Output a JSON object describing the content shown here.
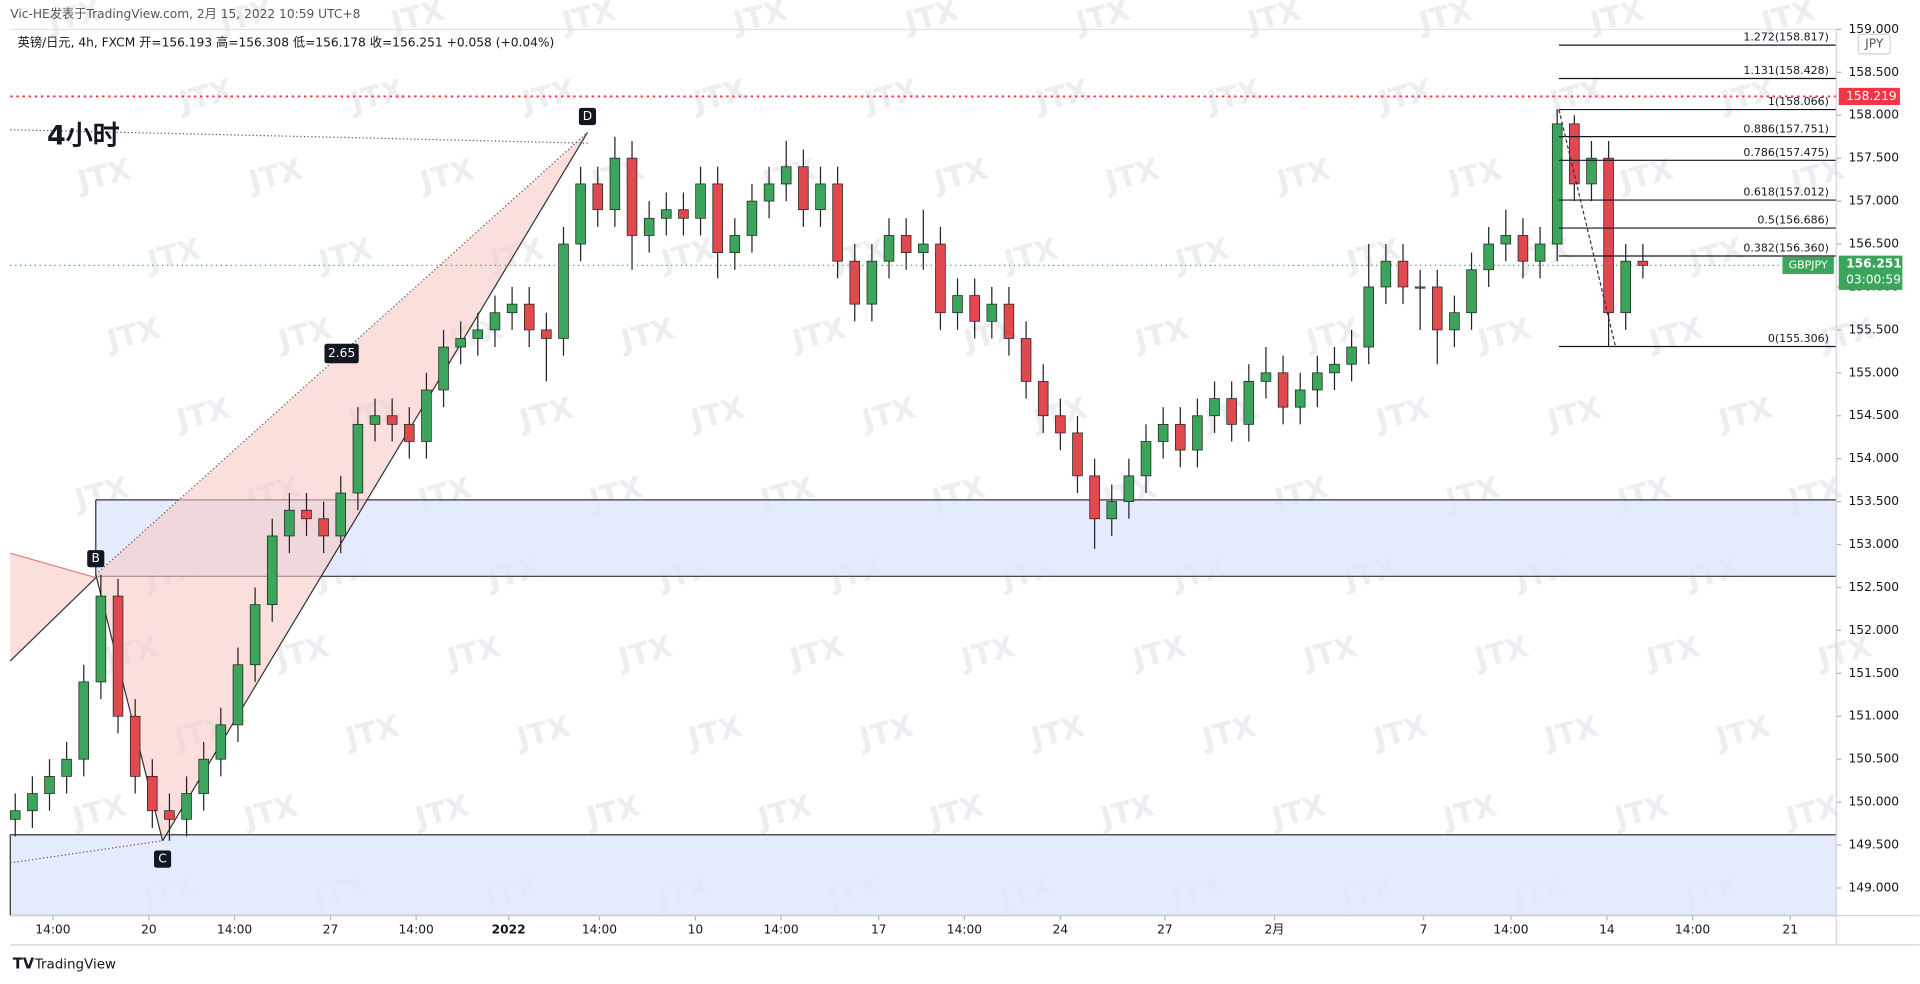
{
  "chart_data": {
    "type": "candlestick",
    "header": "Vic-HE发表于TradingView.com, 2月 15, 2022 10:59 UTC+8",
    "legend_line": "英镑/日元, 4h, FXCM  开=156.193  高=156.308  低=156.178  收=156.251  +0.058 (+0.04%)",
    "title": "4小时",
    "currency": "JPY",
    "brand": "TradingView",
    "watermark": "JTX",
    "symbol": "GBPJPY",
    "last_price": {
      "value": 156.251,
      "label": "156.251"
    },
    "countdown": "03:00:59",
    "alert_line": {
      "value": 158.219,
      "label": "158.219",
      "color": "#f23645"
    },
    "up_color": "#3ba55c",
    "down_color": "#e0494d",
    "xlim": [
      -0.29,
      106.29
    ],
    "ylim": [
      148.68,
      159.0
    ],
    "xticks": [
      {
        "value": 2.2,
        "label": "14:00"
      },
      {
        "value": 7.8,
        "label": "20"
      },
      {
        "value": 12.8,
        "label": "14:00"
      },
      {
        "value": 18.4,
        "label": "27"
      },
      {
        "value": 23.4,
        "label": "14:00"
      },
      {
        "value": 28.8,
        "label": "2022"
      },
      {
        "value": 34.1,
        "label": "14:00"
      },
      {
        "value": 39.7,
        "label": "10"
      },
      {
        "value": 44.7,
        "label": "14:00"
      },
      {
        "value": 50.4,
        "label": "17"
      },
      {
        "value": 55.4,
        "label": "14:00"
      },
      {
        "value": 61.0,
        "label": "24"
      },
      {
        "value": 67.1,
        "label": "27"
      },
      {
        "value": 73.5,
        "label": "2月"
      },
      {
        "value": 82.2,
        "label": "7"
      },
      {
        "value": 87.3,
        "label": "14:00"
      },
      {
        "value": 92.9,
        "label": "14"
      },
      {
        "value": 97.9,
        "label": "14:00"
      },
      {
        "value": 103.6,
        "label": "21"
      }
    ],
    "yticks": [
      {
        "value": 149,
        "label": "149.000"
      },
      {
        "value": 149.5,
        "label": "149.500"
      },
      {
        "value": 150,
        "label": "150.000"
      },
      {
        "value": 150.5,
        "label": "150.500"
      },
      {
        "value": 151,
        "label": "151.000"
      },
      {
        "value": 151.5,
        "label": "151.500"
      },
      {
        "value": 152,
        "label": "152.000"
      },
      {
        "value": 152.5,
        "label": "152.500"
      },
      {
        "value": 153,
        "label": "153.000"
      },
      {
        "value": 153.5,
        "label": "153.500"
      },
      {
        "value": 154,
        "label": "154.000"
      },
      {
        "value": 154.5,
        "label": "154.500"
      },
      {
        "value": 155,
        "label": "155.000"
      },
      {
        "value": 155.5,
        "label": "155.500"
      },
      {
        "value": 156,
        "label": "156.000"
      },
      {
        "value": 156.5,
        "label": "156.500"
      },
      {
        "value": 157,
        "label": "157.000"
      },
      {
        "value": 157.5,
        "label": "157.500"
      },
      {
        "value": 158,
        "label": "158.000"
      },
      {
        "value": 158.5,
        "label": "158.500"
      },
      {
        "value": 159,
        "label": "159.000"
      }
    ],
    "zones": [
      {
        "from": 152.63,
        "to": 153.52,
        "x_start": 4.7
      },
      {
        "from": 148.68,
        "to": 149.62,
        "x_start": -0.29
      }
    ],
    "pattern": {
      "ratio": "2.65",
      "points": [
        {
          "label": "B",
          "x": 4.7,
          "price": 152.65
        },
        {
          "label": "C",
          "x": 8.6,
          "price": 149.55
        },
        {
          "label": "D",
          "x": 33.4,
          "price": 157.8
        }
      ]
    },
    "fib": {
      "start_x": 90.1,
      "end_x": 93.4,
      "levels": [
        {
          "price": 158.817,
          "label": "1.272(158.817)"
        },
        {
          "price": 158.428,
          "label": "1.131(158.428)"
        },
        {
          "price": 158.066,
          "label": "1(158.066)"
        },
        {
          "price": 157.751,
          "label": "0.886(157.751)"
        },
        {
          "price": 157.475,
          "label": "0.786(157.475)"
        },
        {
          "price": 157.012,
          "label": "0.618(157.012)"
        },
        {
          "price": 156.686,
          "label": "0.5(156.686)"
        },
        {
          "price": 156.36,
          "label": "0.382(156.360)"
        },
        {
          "price": 155.306,
          "label": "0(155.306)"
        }
      ]
    },
    "series": [
      {
        "name": "英镑/日元",
        "open": [
          149.8,
          149.9,
          150.1,
          150.3,
          150.5,
          151.4,
          152.4,
          151.0,
          150.3,
          149.9,
          149.8,
          150.1,
          150.5,
          150.9,
          151.6,
          152.3,
          153.1,
          153.4,
          153.3,
          153.1,
          153.6,
          154.4,
          154.5,
          154.4,
          154.2,
          154.8,
          155.3,
          155.4,
          155.5,
          155.7,
          155.8,
          155.5,
          155.4,
          156.5,
          157.2,
          156.9,
          157.5,
          156.6,
          156.8,
          156.9,
          156.8,
          157.2,
          156.4,
          156.6,
          157.0,
          157.2,
          157.4,
          156.9,
          157.2,
          156.3,
          155.8,
          156.3,
          156.6,
          156.4,
          156.5,
          155.7,
          155.9,
          155.6,
          155.8,
          155.4,
          154.9,
          154.5,
          154.3,
          153.8,
          153.3,
          153.5,
          153.8,
          154.2,
          154.4,
          154.1,
          154.5,
          154.7,
          154.4,
          154.9,
          155.0,
          154.6,
          154.8,
          155.0,
          155.1,
          155.3,
          156.0,
          156.3,
          156.0,
          156.0,
          155.5,
          155.7,
          156.2,
          156.5,
          156.6,
          156.3,
          156.5,
          157.9,
          157.2,
          157.5,
          155.7,
          156.3
        ],
        "high": [
          150.1,
          150.3,
          150.5,
          150.7,
          151.6,
          152.65,
          152.6,
          151.2,
          150.5,
          150.1,
          150.3,
          150.7,
          151.1,
          151.8,
          152.5,
          153.3,
          153.6,
          153.6,
          153.5,
          153.8,
          154.6,
          154.7,
          154.7,
          154.6,
          155.0,
          155.5,
          155.6,
          155.7,
          155.9,
          156.0,
          156.0,
          155.7,
          156.7,
          157.4,
          157.4,
          157.75,
          157.7,
          157.0,
          157.1,
          157.1,
          157.4,
          157.4,
          156.8,
          157.2,
          157.4,
          157.7,
          157.6,
          157.4,
          157.4,
          156.5,
          156.5,
          156.8,
          156.8,
          156.9,
          156.7,
          156.1,
          156.1,
          156.0,
          156.0,
          155.6,
          155.1,
          154.7,
          154.5,
          154.0,
          153.7,
          154.0,
          154.4,
          154.6,
          154.6,
          154.7,
          154.9,
          154.9,
          155.1,
          155.3,
          155.2,
          155.0,
          155.2,
          155.3,
          155.5,
          156.5,
          156.5,
          156.5,
          156.2,
          156.2,
          155.9,
          156.4,
          156.7,
          156.9,
          156.8,
          156.7,
          158.07,
          158.0,
          157.7,
          157.7,
          156.5,
          156.5
        ],
        "low": [
          149.6,
          149.7,
          149.9,
          150.1,
          150.3,
          151.2,
          150.8,
          150.1,
          149.7,
          149.55,
          149.6,
          149.9,
          150.3,
          150.7,
          151.4,
          152.1,
          152.9,
          153.1,
          152.9,
          152.9,
          153.4,
          154.2,
          154.2,
          154.0,
          154.0,
          154.6,
          155.1,
          155.2,
          155.3,
          155.5,
          155.3,
          154.9,
          155.2,
          156.3,
          156.7,
          156.7,
          156.2,
          156.4,
          156.6,
          156.6,
          156.6,
          156.1,
          156.2,
          156.4,
          156.8,
          157.0,
          156.7,
          156.7,
          156.1,
          155.6,
          155.6,
          156.1,
          156.2,
          156.2,
          155.5,
          155.5,
          155.4,
          155.4,
          155.2,
          154.7,
          154.3,
          154.1,
          153.6,
          152.95,
          153.1,
          153.3,
          153.6,
          154.0,
          153.9,
          153.9,
          154.3,
          154.2,
          154.2,
          154.7,
          154.4,
          154.4,
          154.6,
          154.8,
          154.9,
          155.1,
          155.8,
          155.8,
          155.5,
          155.1,
          155.3,
          155.5,
          156.0,
          156.3,
          156.1,
          156.1,
          156.3,
          157.0,
          157.0,
          155.3,
          155.5,
          156.1
        ],
        "close": [
          149.9,
          150.1,
          150.3,
          150.5,
          151.4,
          152.4,
          151.0,
          150.3,
          149.9,
          149.8,
          150.1,
          150.5,
          150.9,
          151.6,
          152.3,
          153.1,
          153.4,
          153.3,
          153.1,
          153.6,
          154.4,
          154.5,
          154.4,
          154.2,
          154.8,
          155.3,
          155.4,
          155.5,
          155.7,
          155.8,
          155.5,
          155.4,
          156.5,
          157.2,
          156.9,
          157.5,
          156.6,
          156.8,
          156.9,
          156.8,
          157.2,
          156.4,
          156.6,
          157.0,
          157.2,
          157.4,
          156.9,
          157.2,
          156.3,
          155.8,
          156.3,
          156.6,
          156.4,
          156.5,
          155.7,
          155.9,
          155.6,
          155.8,
          155.4,
          154.9,
          154.5,
          154.3,
          153.8,
          153.3,
          153.5,
          153.8,
          154.2,
          154.4,
          154.1,
          154.5,
          154.7,
          154.4,
          154.9,
          155.0,
          154.6,
          154.8,
          155.0,
          155.1,
          155.3,
          156.0,
          156.3,
          156.0,
          156.0,
          155.5,
          155.7,
          156.2,
          156.5,
          156.6,
          156.3,
          156.5,
          157.9,
          157.2,
          157.5,
          155.7,
          156.3,
          156.25
        ]
      }
    ]
  }
}
